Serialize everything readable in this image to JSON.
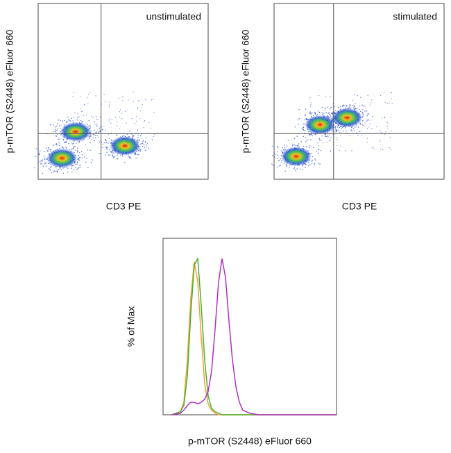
{
  "chart_data": [
    {
      "type": "density",
      "title": "unstimulated",
      "xlabel": "CD3 PE",
      "ylabel": "p-mTOR (S2448) eFluor 660",
      "xlim": [
        0,
        100
      ],
      "ylim": [
        0,
        100
      ],
      "gates": {
        "x": 37,
        "y": 26
      },
      "clusters": {
        "x": [
          14,
          22,
          51
        ],
        "y": [
          12,
          27,
          19
        ]
      }
    },
    {
      "type": "density",
      "title": "stimulated",
      "xlabel": "CD3 PE",
      "ylabel": "p-mTOR (S2448) eFluor 660",
      "xlim": [
        0,
        100
      ],
      "ylim": [
        0,
        100
      ],
      "gates": {
        "x": 35,
        "y": 26
      },
      "clusters": {
        "x": [
          13,
          27,
          43
        ],
        "y": [
          13,
          31,
          35
        ]
      }
    },
    {
      "type": "line",
      "xlabel": "p-mTOR (S2448) eFluor 660",
      "ylabel": "% of Max",
      "xlim": [
        0,
        100
      ],
      "ylim": [
        0,
        113
      ],
      "x": [
        5,
        10,
        12,
        14,
        16,
        18,
        20,
        22,
        24,
        26,
        28,
        30,
        32,
        34,
        36,
        38,
        40,
        42,
        44,
        46,
        50,
        55,
        60,
        100
      ],
      "series": [
        {
          "color": "#f0a030",
          "values": [
            0,
            2,
            8,
            35,
            75,
            98,
            85,
            50,
            20,
            7,
            3,
            1,
            0,
            0,
            0,
            0,
            0,
            0,
            0,
            0,
            0,
            0,
            0,
            0
          ]
        },
        {
          "color": "#48b030",
          "values": [
            0,
            2,
            6,
            25,
            65,
            96,
            100,
            70,
            35,
            12,
            4,
            2,
            1,
            0,
            0,
            0,
            0,
            0,
            0,
            0,
            0,
            0,
            0,
            0
          ]
        },
        {
          "color": "#b030c0",
          "values": [
            0,
            1,
            3,
            6,
            8,
            8,
            7,
            8,
            10,
            15,
            28,
            55,
            85,
            100,
            88,
            60,
            35,
            18,
            8,
            3,
            1,
            0,
            0,
            0
          ]
        }
      ]
    }
  ]
}
